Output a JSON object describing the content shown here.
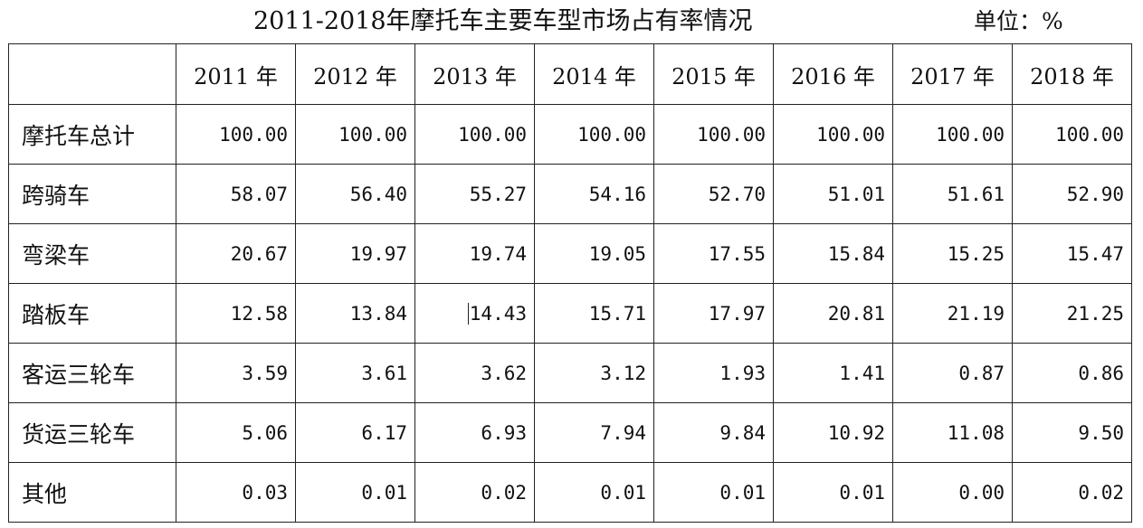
{
  "title": "2011-2018年摩托车主要车型市场占有率情况",
  "unit": "单位：%",
  "table": {
    "corner": "",
    "columns": [
      "2011 年",
      "2012 年",
      "2013 年",
      "2014 年",
      "2015 年",
      "2016 年",
      "2017 年",
      "2018 年"
    ],
    "rows": [
      {
        "label": "摩托车总计",
        "values": [
          "100.00",
          "100.00",
          "100.00",
          "100.00",
          "100.00",
          "100.00",
          "100.00",
          "100.00"
        ]
      },
      {
        "label": "跨骑车",
        "values": [
          "58.07",
          "56.40",
          "55.27",
          "54.16",
          "52.70",
          "51.01",
          "51.61",
          "52.90"
        ]
      },
      {
        "label": "弯梁车",
        "values": [
          "20.67",
          "19.97",
          "19.74",
          "19.05",
          "17.55",
          "15.84",
          "15.25",
          "15.47"
        ]
      },
      {
        "label": "踏板车",
        "values": [
          "12.58",
          "13.84",
          "14.43",
          "15.71",
          "17.97",
          "20.81",
          "21.19",
          "21.25"
        ]
      },
      {
        "label": "客运三轮车",
        "values": [
          "3.59",
          "3.61",
          "3.62",
          "3.12",
          "1.93",
          "1.41",
          "0.87",
          "0.86"
        ]
      },
      {
        "label": "货运三轮车",
        "values": [
          "5.06",
          "6.17",
          "6.93",
          "7.94",
          "9.84",
          "10.92",
          "11.08",
          "9.50"
        ]
      },
      {
        "label": "其他",
        "values": [
          "0.03",
          "0.01",
          "0.02",
          "0.01",
          "0.01",
          "0.01",
          "0.00",
          "0.02"
        ]
      }
    ]
  }
}
